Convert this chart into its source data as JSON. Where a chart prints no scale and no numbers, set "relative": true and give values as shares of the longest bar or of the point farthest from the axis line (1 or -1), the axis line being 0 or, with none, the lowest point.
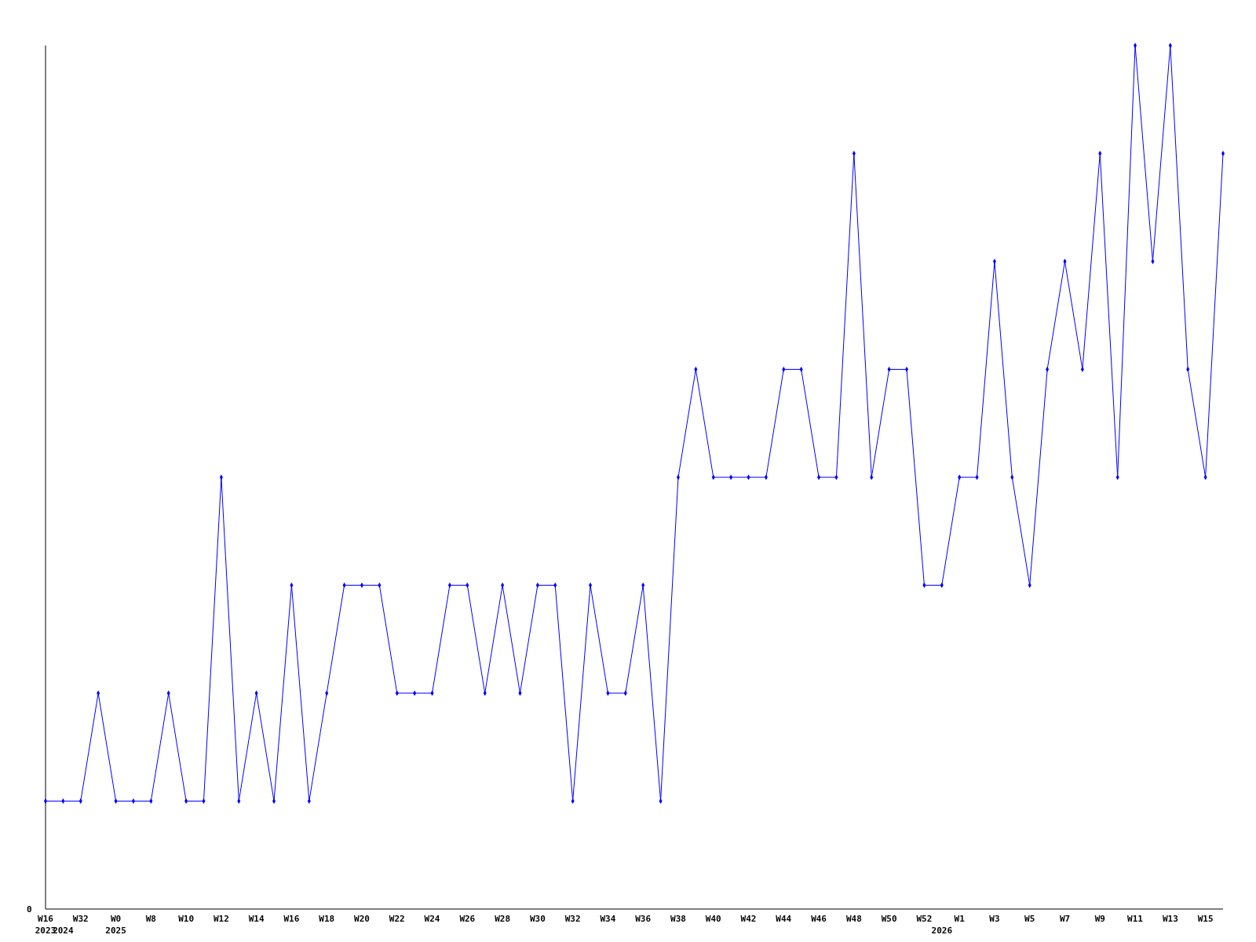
{
  "chart_data": {
    "type": "line",
    "relative": true,
    "color": "#0000ff",
    "marker": "diamond",
    "line_style": "solid",
    "categories": [
      "W16\n2023",
      "\n2024",
      "W32",
      null,
      "W0\n2025",
      null,
      "W8",
      null,
      "W10",
      null,
      "W12",
      null,
      "W14",
      null,
      "W16",
      null,
      "W18",
      null,
      "W20",
      null,
      "W22",
      null,
      "W24",
      null,
      "W26",
      null,
      "W28",
      null,
      "W30",
      null,
      "W32",
      null,
      "W34",
      null,
      "W36",
      null,
      "W38",
      null,
      "W40",
      null,
      "W42",
      null,
      "W44",
      null,
      "W46",
      null,
      "W48",
      null,
      "W50",
      null,
      "W52",
      "\n2026",
      "W1",
      null,
      "W3",
      null,
      "W5",
      null,
      "W7",
      null,
      "W9",
      null,
      "W11",
      null,
      "W13",
      null,
      "W15",
      null
    ],
    "values": [
      0.125,
      0.125,
      0.125,
      0.25,
      0.125,
      0.125,
      0.125,
      0.25,
      0.125,
      0.125,
      0.5,
      0.125,
      0.25,
      0.125,
      0.375,
      0.125,
      0.25,
      0.375,
      0.375,
      0.375,
      0.25,
      0.25,
      0.25,
      0.375,
      0.375,
      0.25,
      0.375,
      0.25,
      0.375,
      0.375,
      0.125,
      0.375,
      0.25,
      0.25,
      0.375,
      0.125,
      0.5,
      0.625,
      0.5,
      0.5,
      0.5,
      0.5,
      0.625,
      0.625,
      0.5,
      0.5,
      0.875,
      0.5,
      0.625,
      0.625,
      0.375,
      0.375,
      0.5,
      0.5,
      0.75,
      0.5,
      0.375,
      0.625,
      0.75,
      0.625,
      0.875,
      0.5,
      1,
      0.75,
      1,
      0.625,
      0.5,
      0.875
    ],
    "annotations": [
      "0"
    ]
  }
}
